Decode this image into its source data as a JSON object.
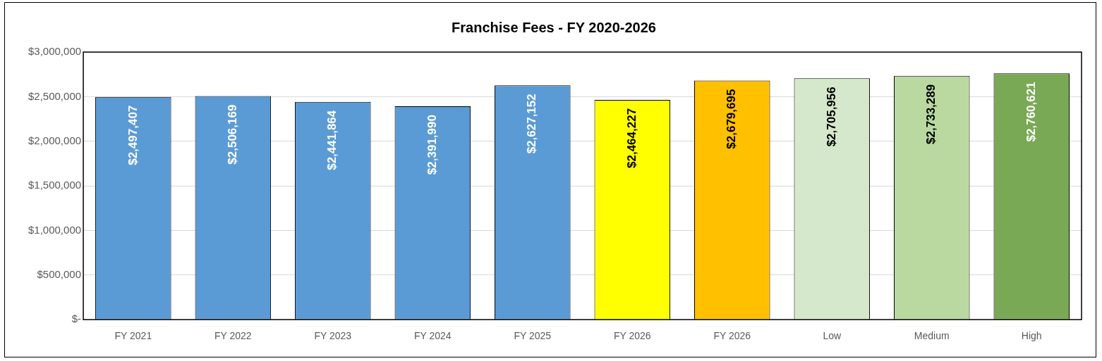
{
  "chart_data": {
    "type": "bar",
    "title": "Franchise Fees - FY 2020-2026",
    "categories": [
      "FY 2021",
      "FY 2022",
      "FY 2023",
      "FY 2024",
      "FY 2025",
      "FY 2026",
      "FY 2026",
      "Low",
      "Medium",
      "High"
    ],
    "values": [
      2497407,
      2506169,
      2441864,
      2391990,
      2627152,
      2464227,
      2679695,
      2705956,
      2733289,
      2760621
    ],
    "colors": [
      "#5b9bd5",
      "#5b9bd5",
      "#5b9bd5",
      "#5b9bd5",
      "#5b9bd5",
      "#ffff00",
      "#ffc000",
      "#d6e8cb",
      "#b9d9a0",
      "#79a955"
    ],
    "value_labels": [
      "$2,497,407",
      "$2,506,169",
      "$2,441,864",
      "$2,391,990",
      "$2,627,152",
      "$2,464,227",
      "$2,679,695",
      "$2,705,956",
      "$2,733,289",
      "$2,760,621"
    ],
    "ylim": [
      0,
      3000000
    ],
    "yticks": [
      {
        "value": 0,
        "label": "$-"
      },
      {
        "value": 500000,
        "label": "$500,000"
      },
      {
        "value": 1000000,
        "label": "$1,000,000"
      },
      {
        "value": 1500000,
        "label": "$1,500,000"
      },
      {
        "value": 2000000,
        "label": "$2,000,000"
      },
      {
        "value": 2500000,
        "label": "$2,500,000"
      },
      {
        "value": 3000000,
        "label": "$3,000,000"
      }
    ],
    "grid": "y"
  }
}
